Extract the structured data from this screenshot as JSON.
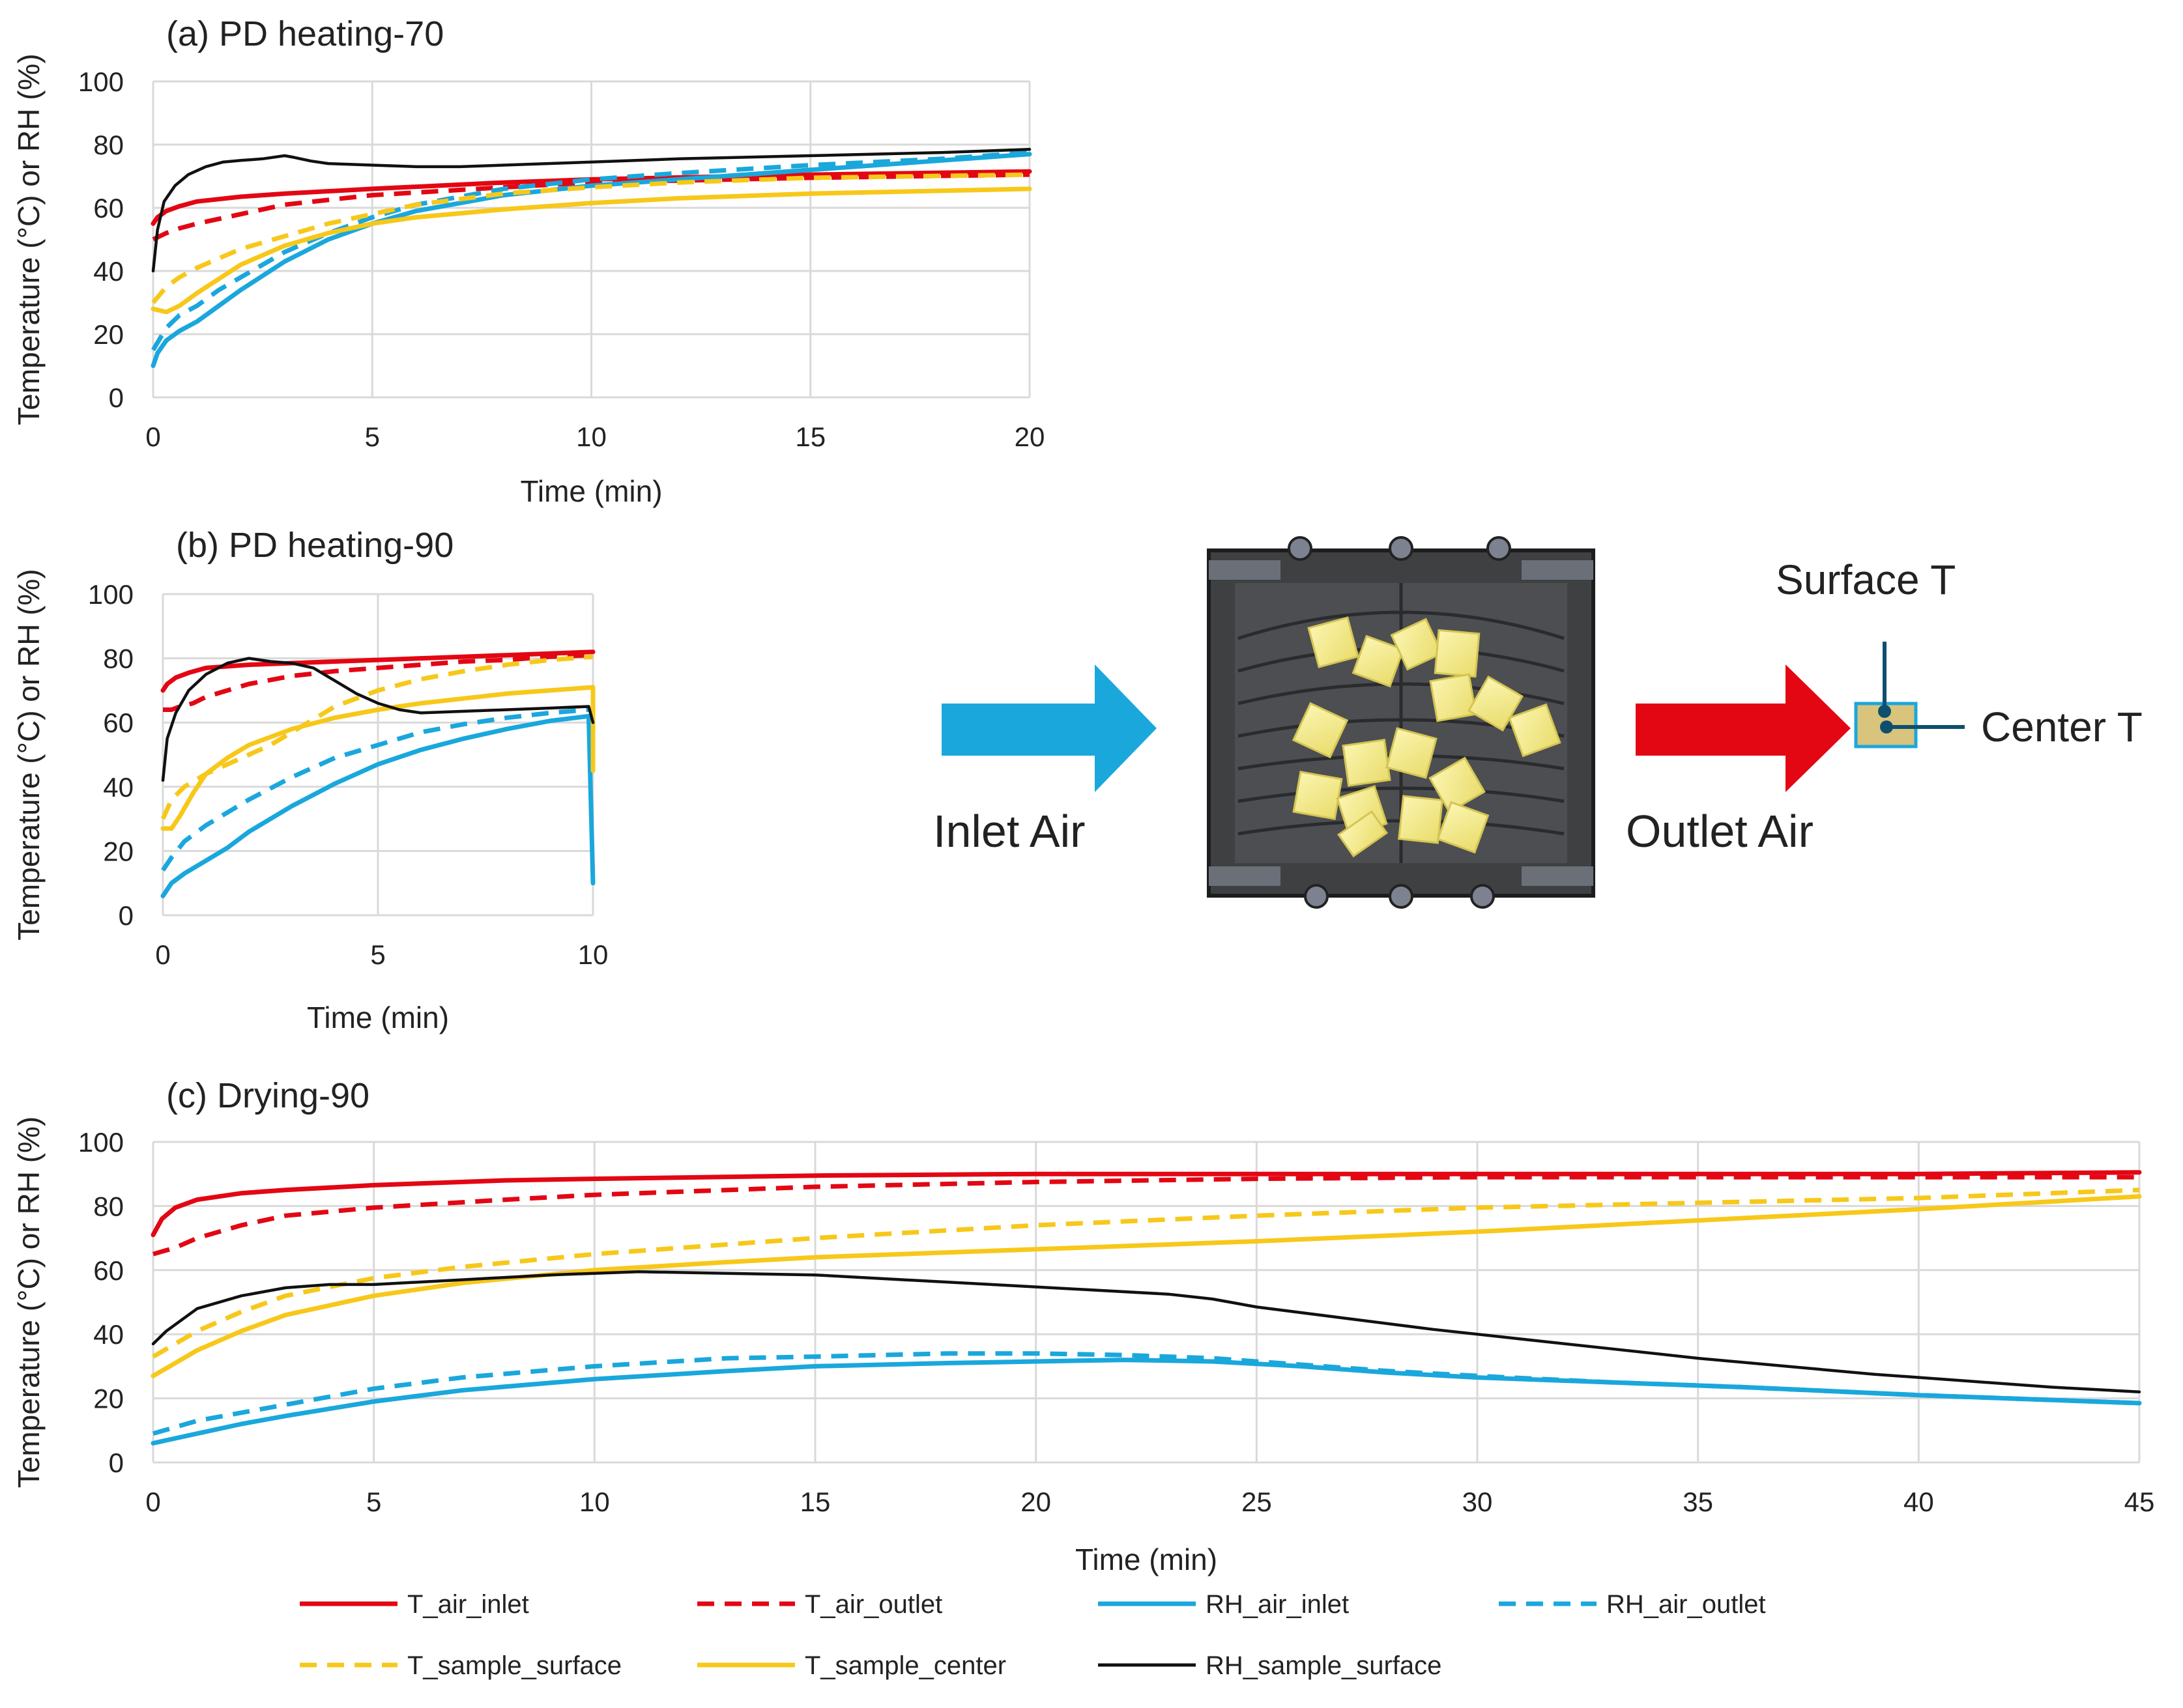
{
  "colors": {
    "t_air_inlet": "#e30613",
    "t_air_outlet": "#e30613",
    "rh_air_inlet": "#1aa7dc",
    "rh_air_outlet": "#1aa7dc",
    "t_sample_surface": "#f7c81a",
    "t_sample_center": "#f7c81a",
    "rh_sample_surface": "#111111",
    "inlet_arrow": "#1aa7dc",
    "outlet_arrow": "#e30613",
    "grid": "#d9d9d9"
  },
  "legend": [
    {
      "key": "t_air_inlet",
      "label": "T_air_inlet",
      "dash": "solid"
    },
    {
      "key": "t_air_outlet",
      "label": "T_air_outlet",
      "dash": "dash"
    },
    {
      "key": "rh_air_inlet",
      "label": "RH_air_inlet",
      "dash": "solid"
    },
    {
      "key": "rh_air_outlet",
      "label": "RH_air_outlet",
      "dash": "dash"
    },
    {
      "key": "t_sample_surface",
      "label": "T_sample_surface",
      "dash": "dash"
    },
    {
      "key": "t_sample_center",
      "label": "T_sample_center",
      "dash": "solid"
    },
    {
      "key": "rh_sample_surface",
      "label": "RH_sample_surface",
      "dash": "thin"
    }
  ],
  "diagram": {
    "inlet_label": "Inlet Air",
    "outlet_label": "Outlet Air",
    "surface_label": "Surface T",
    "center_label": "Center T"
  },
  "chart_data": [
    {
      "id": "a",
      "type": "line",
      "title": "(a) PD heating-70",
      "xlabel": "Time (min)",
      "ylabel": "Temperature (°C) or RH (%)",
      "xlim": [
        0,
        20
      ],
      "ylim": [
        0,
        100
      ],
      "xticks": [
        0,
        5,
        10,
        15,
        20
      ],
      "yticks": [
        0,
        20,
        40,
        60,
        80,
        100
      ],
      "grid": true,
      "series": [
        {
          "key": "t_air_inlet",
          "name": "T_air_inlet",
          "x": [
            0,
            0.1,
            0.3,
            0.6,
            1,
            2,
            3,
            5,
            8,
            10,
            15,
            20
          ],
          "values": [
            55,
            57,
            59,
            60.5,
            62,
            63.5,
            64.5,
            66,
            68,
            69,
            70.5,
            71.5
          ]
        },
        {
          "key": "t_air_outlet",
          "name": "T_air_outlet",
          "x": [
            0,
            0.3,
            0.6,
            1,
            2,
            3,
            5,
            8,
            10,
            15,
            20
          ],
          "values": [
            50,
            52,
            53.5,
            55,
            58,
            61,
            64,
            66.5,
            68,
            69.5,
            70.5
          ]
        },
        {
          "key": "rh_air_inlet",
          "name": "RH_air_inlet",
          "x": [
            0,
            0.1,
            0.3,
            0.6,
            1,
            1.5,
            2,
            3,
            4,
            5,
            6,
            8,
            10,
            12,
            15,
            18,
            20
          ],
          "values": [
            10,
            14,
            18,
            21,
            24,
            29,
            34,
            43,
            50,
            55,
            59,
            64,
            67,
            69,
            72,
            75,
            77
          ]
        },
        {
          "key": "rh_air_outlet",
          "name": "RH_air_outlet",
          "x": [
            0,
            0.3,
            0.6,
            1,
            1.5,
            2,
            3,
            4,
            5,
            6,
            8,
            10,
            12,
            15,
            18,
            20
          ],
          "values": [
            15,
            22,
            26,
            29,
            34,
            38,
            46,
            52,
            57,
            61,
            66,
            69,
            71,
            73.5,
            75.5,
            77.5
          ]
        },
        {
          "key": "t_sample_surface",
          "name": "T_sample_surface",
          "x": [
            0,
            0.3,
            0.6,
            1,
            2,
            3,
            4,
            5,
            6,
            8,
            10,
            12,
            15,
            20
          ],
          "values": [
            30,
            35,
            38,
            41,
            47,
            51,
            55,
            58,
            61,
            64.5,
            66.5,
            68,
            69.5,
            70.5
          ]
        },
        {
          "key": "t_sample_center",
          "name": "T_sample_center",
          "x": [
            0,
            0.3,
            0.6,
            1,
            2,
            3,
            4,
            5,
            6,
            8,
            10,
            12,
            15,
            20
          ],
          "values": [
            28,
            27,
            29,
            33,
            42,
            48,
            52,
            55,
            57,
            59.5,
            61.5,
            63,
            64.5,
            66
          ]
        },
        {
          "key": "rh_sample_surface",
          "name": "RH_sample_surface",
          "x": [
            0,
            0.1,
            0.25,
            0.5,
            0.8,
            1.2,
            1.6,
            2,
            2.5,
            3,
            3.2,
            3.6,
            4,
            5,
            6,
            7,
            8,
            10,
            12,
            15,
            18,
            20
          ],
          "values": [
            40,
            53,
            62,
            67,
            70.5,
            73,
            74.5,
            75,
            75.5,
            76.5,
            76,
            74.8,
            74,
            73.5,
            73,
            73,
            73.5,
            74.5,
            75.5,
            76.5,
            77.5,
            78.5
          ]
        }
      ]
    },
    {
      "id": "b",
      "type": "line",
      "title": "(b) PD heating-90",
      "xlabel": "Time (min)",
      "ylabel": "Temperature (°C) or RH (%)",
      "xlim": [
        0,
        10
      ],
      "ylim": [
        0,
        100
      ],
      "xticks": [
        0,
        5,
        10
      ],
      "yticks": [
        0,
        20,
        40,
        60,
        80,
        100
      ],
      "grid": true,
      "series": [
        {
          "key": "t_air_inlet",
          "name": "T_air_inlet",
          "x": [
            0,
            0.1,
            0.3,
            0.6,
            1,
            2,
            3,
            4,
            5,
            6,
            8,
            10
          ],
          "values": [
            70,
            72,
            74,
            75.5,
            77,
            78,
            78.5,
            79,
            79.5,
            80,
            81,
            82
          ]
        },
        {
          "key": "t_air_outlet",
          "name": "T_air_outlet",
          "x": [
            0,
            0.2,
            0.4,
            0.7,
            1,
            1.5,
            2,
            3,
            4,
            5,
            6,
            7,
            8,
            9,
            10
          ],
          "values": [
            64,
            64,
            65,
            66,
            68,
            70,
            72,
            74.5,
            76,
            77,
            78,
            79,
            79.5,
            80.5,
            81
          ]
        },
        {
          "key": "rh_air_inlet",
          "name": "RH_air_inlet",
          "x": [
            0,
            0.2,
            0.5,
            1,
            1.5,
            2,
            3,
            4,
            5,
            6,
            7,
            8,
            9,
            9.9,
            10
          ],
          "values": [
            6,
            10,
            13,
            17,
            21,
            26,
            34,
            41,
            47,
            51.5,
            55,
            58,
            60.5,
            62,
            10
          ]
        },
        {
          "key": "rh_air_outlet",
          "name": "RH_air_outlet",
          "x": [
            0,
            0.2,
            0.5,
            1,
            1.5,
            2,
            3,
            4,
            5,
            6,
            7,
            8,
            9,
            9.9
          ],
          "values": [
            14,
            18,
            23,
            28,
            32,
            36,
            43,
            49,
            53,
            57,
            59.5,
            61.5,
            63,
            64
          ]
        },
        {
          "key": "t_sample_surface",
          "name": "T_sample_surface",
          "x": [
            0,
            0.2,
            0.5,
            1,
            1.5,
            2,
            2.5,
            3,
            3.5,
            4,
            5,
            6,
            7,
            8,
            9,
            10
          ],
          "values": [
            30,
            36,
            40,
            44,
            47,
            50,
            53,
            57,
            61,
            65,
            70,
            73.5,
            76,
            78,
            79.5,
            80.5
          ]
        },
        {
          "key": "t_sample_center",
          "name": "T_sample_center",
          "x": [
            0,
            0.2,
            0.4,
            0.7,
            1,
            1.5,
            2,
            3,
            4,
            5,
            6,
            7,
            8,
            9,
            10,
            10
          ],
          "values": [
            27,
            27,
            31,
            38,
            44,
            49,
            53,
            58,
            61.5,
            64,
            66,
            67.5,
            69,
            70,
            71,
            45
          ]
        },
        {
          "key": "rh_sample_surface",
          "name": "RH_sample_surface",
          "x": [
            0,
            0.1,
            0.3,
            0.6,
            1,
            1.5,
            2,
            2.5,
            3,
            3.5,
            4,
            4.5,
            5,
            5.5,
            6,
            7,
            8,
            9,
            9.9,
            10
          ],
          "values": [
            42,
            55,
            63,
            70,
            75,
            78.5,
            80,
            79,
            78.5,
            77,
            73,
            69,
            66,
            64,
            63,
            63.5,
            64,
            64.5,
            65,
            60
          ]
        }
      ]
    },
    {
      "id": "c",
      "type": "line",
      "title": "(c) Drying-90",
      "xlabel": "Time (min)",
      "ylabel": "Temperature (°C) or RH (%)",
      "xlim": [
        0,
        45
      ],
      "ylim": [
        0,
        100
      ],
      "xticks": [
        0,
        5,
        10,
        15,
        20,
        25,
        30,
        35,
        40,
        45
      ],
      "yticks": [
        0,
        20,
        40,
        60,
        80,
        100
      ],
      "grid": true,
      "series": [
        {
          "key": "t_air_inlet",
          "name": "T_air_inlet",
          "x": [
            0,
            0.2,
            0.5,
            1,
            2,
            3,
            5,
            8,
            10,
            15,
            20,
            25,
            30,
            35,
            40,
            45
          ],
          "values": [
            71,
            76,
            79.5,
            82,
            84,
            85,
            86.5,
            88,
            88.5,
            89.5,
            90,
            90,
            90,
            90,
            90,
            90.5
          ]
        },
        {
          "key": "t_air_outlet",
          "name": "T_air_outlet",
          "x": [
            0,
            0.5,
            1,
            2,
            3,
            5,
            8,
            10,
            15,
            20,
            25,
            30,
            35,
            40,
            45
          ],
          "values": [
            65,
            67,
            70,
            74,
            77,
            79.5,
            82,
            83.5,
            86,
            87.5,
            88.5,
            89,
            89,
            89,
            89
          ]
        },
        {
          "key": "rh_air_inlet",
          "name": "RH_air_inlet",
          "x": [
            0,
            1,
            2,
            3,
            5,
            7,
            10,
            13,
            15,
            18,
            20,
            22,
            24,
            26,
            28,
            30,
            33,
            36,
            40,
            43,
            45
          ],
          "values": [
            6,
            9,
            12,
            14.5,
            19,
            22.5,
            26,
            28.5,
            30,
            31,
            31.5,
            32,
            31.5,
            30,
            28,
            26.5,
            25,
            23.5,
            21,
            19.5,
            18.5
          ]
        },
        {
          "key": "rh_air_outlet",
          "name": "RH_air_outlet",
          "x": [
            0,
            0.5,
            1,
            2,
            3,
            5,
            7,
            10,
            13,
            15,
            18,
            20,
            22,
            24,
            26,
            28,
            30,
            33,
            36,
            40,
            43,
            45
          ],
          "values": [
            9,
            11,
            13,
            15.5,
            18,
            23,
            26.5,
            30,
            32.5,
            33,
            34,
            34,
            33.5,
            32.5,
            30.5,
            28.5,
            27,
            25,
            23.5,
            21,
            19.5,
            18.5
          ]
        },
        {
          "key": "t_sample_surface",
          "name": "T_sample_surface",
          "x": [
            0,
            0.5,
            1,
            2,
            3,
            5,
            7,
            10,
            13,
            15,
            20,
            25,
            30,
            35,
            40,
            45
          ],
          "values": [
            33,
            37,
            41,
            47,
            52,
            57.5,
            61,
            65,
            68,
            70,
            74,
            77,
            79.5,
            81,
            82.5,
            85
          ]
        },
        {
          "key": "t_sample_center",
          "name": "T_sample_center",
          "x": [
            0,
            0.5,
            1,
            2,
            3,
            5,
            7,
            10,
            13,
            15,
            20,
            25,
            30,
            35,
            40,
            45
          ],
          "values": [
            27,
            31,
            35,
            41,
            46,
            52,
            56,
            60,
            62.5,
            64,
            66.5,
            69,
            72,
            75.5,
            79,
            83
          ]
        },
        {
          "key": "rh_sample_surface",
          "name": "RH_sample_surface",
          "x": [
            0,
            0.3,
            0.7,
            1,
            2,
            3,
            4,
            5,
            7,
            9,
            11,
            13,
            15,
            17,
            19,
            21,
            23,
            24,
            25,
            27,
            29,
            31,
            33,
            35,
            37,
            39,
            41,
            43,
            45
          ],
          "values": [
            37,
            41,
            45,
            48,
            52,
            54.5,
            55.5,
            55.5,
            57,
            58.5,
            59.5,
            59,
            58.5,
            57,
            55.5,
            54,
            52.5,
            51,
            48.5,
            45,
            41.5,
            38.5,
            35.5,
            32.5,
            30,
            27.5,
            25.5,
            23.5,
            22
          ]
        }
      ]
    }
  ]
}
